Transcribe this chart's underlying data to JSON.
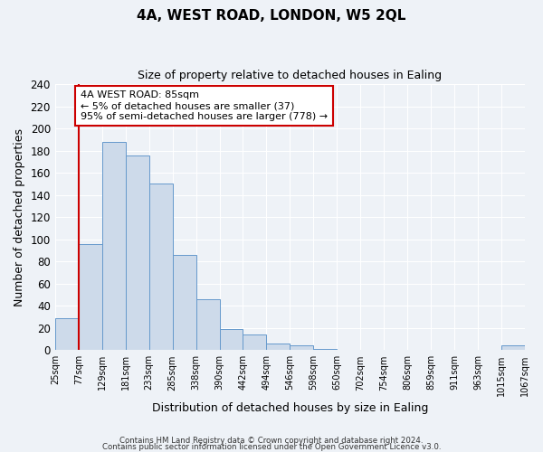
{
  "title": "4A, WEST ROAD, LONDON, W5 2QL",
  "subtitle": "Size of property relative to detached houses in Ealing",
  "xlabel": "Distribution of detached houses by size in Ealing",
  "ylabel": "Number of detached properties",
  "bar_values": [
    29,
    96,
    188,
    176,
    150,
    86,
    46,
    19,
    14,
    6,
    4,
    1,
    0,
    0,
    0,
    0,
    0,
    0,
    0,
    4
  ],
  "bin_labels": [
    "25sqm",
    "77sqm",
    "129sqm",
    "181sqm",
    "233sqm",
    "285sqm",
    "338sqm",
    "390sqm",
    "442sqm",
    "494sqm",
    "546sqm",
    "598sqm",
    "650sqm",
    "702sqm",
    "754sqm",
    "806sqm",
    "859sqm",
    "911sqm",
    "963sqm",
    "1015sqm",
    "1067sqm"
  ],
  "bar_color": "#cddaea",
  "bar_edge_color": "#6699cc",
  "vline_x": 1,
  "vline_color": "#cc0000",
  "annotation_text": "4A WEST ROAD: 85sqm\n← 5% of detached houses are smaller (37)\n95% of semi-detached houses are larger (778) →",
  "annotation_box_facecolor": "#ffffff",
  "annotation_box_edgecolor": "#cc0000",
  "ylim": [
    0,
    240
  ],
  "yticks": [
    0,
    20,
    40,
    60,
    80,
    100,
    120,
    140,
    160,
    180,
    200,
    220,
    240
  ],
  "footer1": "Contains HM Land Registry data © Crown copyright and database right 2024.",
  "footer2": "Contains public sector information licensed under the Open Government Licence v3.0.",
  "background_color": "#eef2f7",
  "grid_color": "#ffffff",
  "title_fontsize": 11,
  "subtitle_fontsize": 9
}
